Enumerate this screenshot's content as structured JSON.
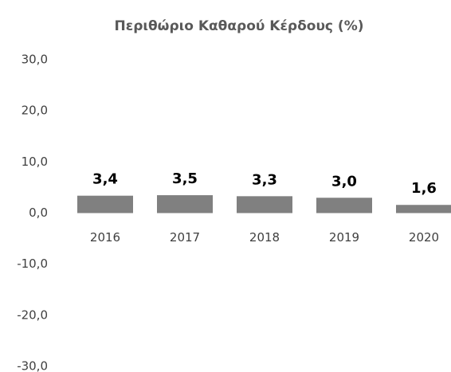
{
  "chart_data": {
    "type": "bar",
    "title": "Περιθώριο Καθαρού Κέρδους (%)",
    "categories": [
      "2016",
      "2017",
      "2018",
      "2019",
      "2020"
    ],
    "values": [
      3.4,
      3.5,
      3.3,
      3.0,
      1.6
    ],
    "value_labels": [
      "3,4",
      "3,5",
      "3,3",
      "3,0",
      "1,6"
    ],
    "color": "#808080",
    "ylim": [
      -30,
      30
    ],
    "yticks": [
      {
        "value": -30,
        "label": "-30,0"
      },
      {
        "value": -20,
        "label": "-20,0"
      },
      {
        "value": -10,
        "label": "-10,0"
      },
      {
        "value": 0,
        "label": "0,0"
      },
      {
        "value": 10,
        "label": "10,0"
      },
      {
        "value": 20,
        "label": "20,0"
      },
      {
        "value": 30,
        "label": "30,0"
      }
    ],
    "grid": false
  }
}
